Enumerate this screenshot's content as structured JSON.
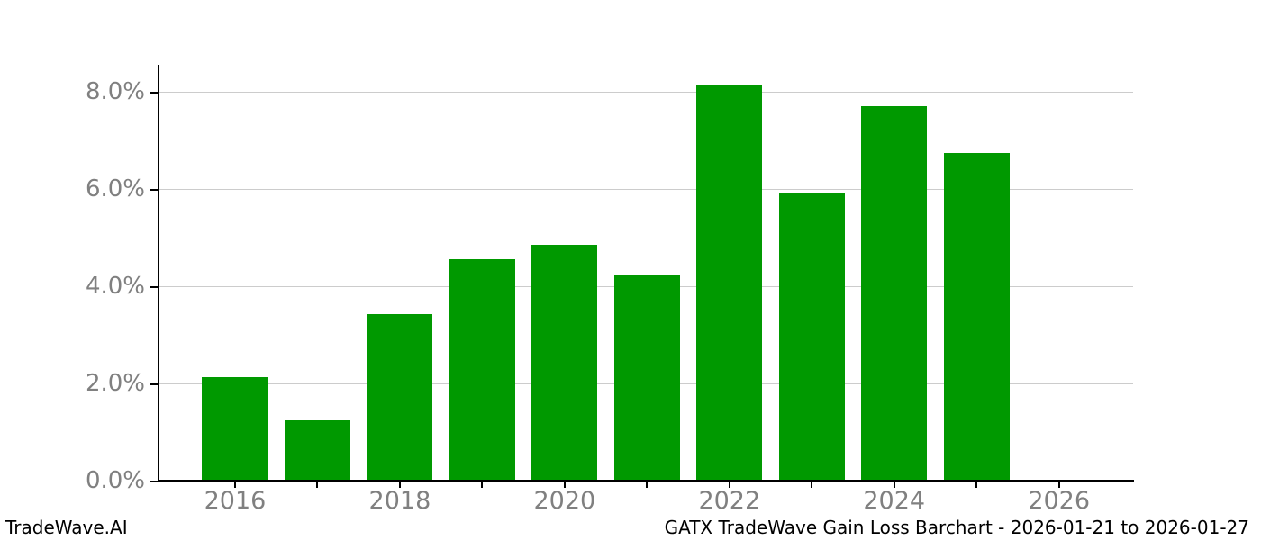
{
  "branding": {
    "watermark": "TradeWave.AI"
  },
  "footer": {
    "caption": "GATX TradeWave Gain Loss Barchart - 2026-01-21 to 2026-01-27"
  },
  "chart_data": {
    "type": "bar",
    "title": "",
    "categories": [
      2016,
      2017,
      2018,
      2019,
      2020,
      2021,
      2022,
      2023,
      2024,
      2025
    ],
    "values": [
      2.13,
      1.25,
      3.43,
      4.55,
      4.86,
      4.24,
      8.16,
      5.91,
      7.7,
      6.74
    ],
    "unit": "%",
    "bar_color": "#009900",
    "grid": "horizontal",
    "grid_color": "#cccccc",
    "axis_color": "#000000",
    "tick_label_color": "#808080",
    "legend": "none",
    "ylim": [
      0,
      8.56
    ],
    "xlim": [
      2015.06,
      2026.9
    ],
    "y_ticks": [
      0,
      2,
      4,
      6,
      8
    ],
    "y_tick_labels": [
      "0.0%",
      "2.0%",
      "4.0%",
      "6.0%",
      "8.0%"
    ],
    "x_ticks": [
      2016,
      2017,
      2018,
      2019,
      2020,
      2021,
      2022,
      2023,
      2024,
      2025,
      2026
    ],
    "x_tick_labels": [
      "2016",
      "",
      "2018",
      "",
      "2020",
      "",
      "2022",
      "",
      "2024",
      "",
      "2026"
    ]
  }
}
